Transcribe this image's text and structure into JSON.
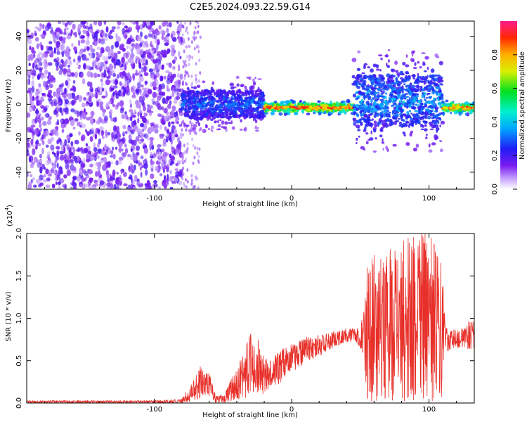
{
  "figure_title": "C2E5.2024.093.22.59.G14",
  "colors": {
    "frame": "#000000",
    "snr_line": "#e8302a",
    "spectrogram_noise": "#8a3cf0",
    "background": "#ffffff"
  },
  "chart_data": [
    {
      "type": "heatmap",
      "title": "",
      "xlabel": "Height of straight line (km)",
      "ylabel": "Frequency (Hz)",
      "xlim": [
        -193,
        133
      ],
      "ylim": [
        -50,
        49
      ],
      "x_ticks": [
        -100,
        0,
        100
      ],
      "y_ticks": [
        -40,
        -20,
        0,
        20,
        40
      ],
      "grid": false,
      "colorbar": {
        "label": "Normalized spectral amplitude",
        "range": [
          0.0,
          1.0
        ],
        "ticks": [
          "0.0",
          "0.2",
          "0.4",
          "0.6",
          "0.8"
        ],
        "tick_values": [
          0.0,
          0.2,
          0.4,
          0.6,
          0.8
        ],
        "colormap": "rainbow (white-violet-blue-cyan-green-yellow-red-magenta)"
      },
      "features": [
        {
          "region": "noise",
          "x_range": [
            -193,
            -80
          ],
          "freq_range": [
            -50,
            49
          ],
          "amplitude": 0.15
        },
        {
          "region": "weak signal band",
          "x_range": [
            -80,
            -20
          ],
          "freq_center": 0,
          "freq_halfwidth": 8,
          "amplitude": 0.3
        },
        {
          "region": "strong signal line",
          "x_range": [
            -20,
            45
          ],
          "freq_center": -2,
          "freq_halfwidth": 2,
          "amplitude": 0.85
        },
        {
          "region": "scattered signal",
          "x_range": [
            45,
            110
          ],
          "freq_center": 2,
          "freq_halfwidth": 15,
          "amplitude": 0.35
        },
        {
          "region": "strong signal line",
          "x_range": [
            110,
            133
          ],
          "freq_center": -2,
          "freq_halfwidth": 2,
          "amplitude": 0.8
        }
      ]
    },
    {
      "type": "line",
      "title": "",
      "xlabel": "Height of straight line (km)",
      "ylabel": "SNR (10 * v/v)",
      "y_multiplier": "(x10^4)",
      "y_multiplier_base": "(x10",
      "y_multiplier_exp": "4",
      "y_multiplier_close": ")",
      "xlim": [
        -193,
        133
      ],
      "ylim": [
        0,
        2.0
      ],
      "x_ticks": [
        -100,
        0,
        100
      ],
      "y_ticks": [
        "0.0",
        "0.5",
        "1.0",
        "1.5",
        "2.0"
      ],
      "y_tick_values": [
        0.0,
        0.5,
        1.0,
        1.5,
        2.0
      ],
      "grid": false,
      "series": [
        {
          "color": "#e8302a",
          "envelope": {
            "x": [
              -193,
              -150,
              -100,
              -80,
              -72,
              -66,
              -60,
              -55,
              -50,
              -40,
              -33,
              -28,
              -20,
              -15,
              -10,
              -5,
              0,
              10,
              20,
              30,
              40,
              47,
              52,
              55,
              60,
              70,
              80,
              90,
              100,
              105,
              110,
              112,
              115,
              125,
              133
            ],
            "low": [
              0.0,
              0.0,
              0.0,
              0.0,
              0.02,
              0.05,
              0.08,
              0.0,
              0.0,
              0.04,
              0.06,
              0.1,
              0.1,
              0.2,
              0.2,
              0.3,
              0.35,
              0.48,
              0.55,
              0.65,
              0.72,
              0.72,
              0.55,
              0.02,
              0.02,
              0.02,
              0.02,
              0.02,
              0.02,
              0.02,
              0.02,
              0.6,
              0.62,
              0.65,
              0.62
            ],
            "high": [
              0.03,
              0.03,
              0.03,
              0.05,
              0.25,
              0.45,
              0.35,
              0.08,
              0.1,
              0.4,
              0.7,
              0.92,
              0.55,
              0.5,
              0.6,
              0.65,
              0.7,
              0.78,
              0.8,
              0.85,
              0.88,
              0.88,
              1.0,
              1.7,
              1.75,
              1.8,
              1.9,
              2.0,
              2.0,
              1.85,
              1.6,
              0.9,
              0.88,
              0.88,
              1.05
            ]
          }
        }
      ]
    }
  ]
}
